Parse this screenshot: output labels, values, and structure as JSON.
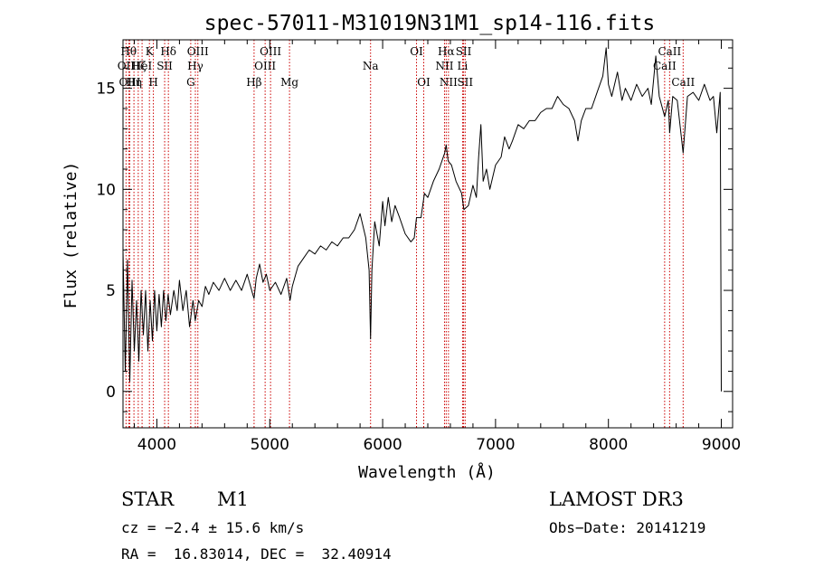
{
  "chart_data": {
    "type": "line",
    "title": "spec-57011-M31019N31M1_sp14-116.fits",
    "xlabel": "Wavelength (Å)",
    "ylabel": "Flux (relative)",
    "xlim": [
      3700,
      9100
    ],
    "ylim": [
      -1.8,
      17.4
    ],
    "xticks": [
      4000,
      5000,
      6000,
      7000,
      8000,
      9000
    ],
    "yticks": [
      0,
      5,
      10,
      15
    ],
    "grid": false,
    "series": [
      {
        "values": [
          [
            3700,
            7.0
          ],
          [
            3720,
            1.0
          ],
          [
            3740,
            6.5
          ],
          [
            3760,
            0.5
          ],
          [
            3780,
            5.5
          ],
          [
            3800,
            2.0
          ],
          [
            3820,
            4.5
          ],
          [
            3840,
            1.5
          ],
          [
            3860,
            5.0
          ],
          [
            3880,
            2.8
          ],
          [
            3900,
            5.0
          ],
          [
            3920,
            2.0
          ],
          [
            3940,
            4.5
          ],
          [
            3960,
            2.5
          ],
          [
            3980,
            5.0
          ],
          [
            4000,
            3.0
          ],
          [
            4020,
            4.8
          ],
          [
            4040,
            3.2
          ],
          [
            4060,
            5.0
          ],
          [
            4080,
            3.5
          ],
          [
            4100,
            4.8
          ],
          [
            4120,
            3.8
          ],
          [
            4150,
            5.0
          ],
          [
            4180,
            4.0
          ],
          [
            4200,
            5.5
          ],
          [
            4230,
            4.0
          ],
          [
            4260,
            5.0
          ],
          [
            4290,
            3.2
          ],
          [
            4320,
            4.5
          ],
          [
            4340,
            3.5
          ],
          [
            4370,
            4.5
          ],
          [
            4400,
            4.2
          ],
          [
            4430,
            5.2
          ],
          [
            4460,
            4.8
          ],
          [
            4500,
            5.4
          ],
          [
            4550,
            5.0
          ],
          [
            4600,
            5.6
          ],
          [
            4650,
            5.0
          ],
          [
            4700,
            5.5
          ],
          [
            4750,
            5.0
          ],
          [
            4800,
            5.8
          ],
          [
            4850,
            4.8
          ],
          [
            4861,
            4.6
          ],
          [
            4880,
            5.6
          ],
          [
            4910,
            6.3
          ],
          [
            4940,
            5.4
          ],
          [
            4970,
            5.8
          ],
          [
            5000,
            5.0
          ],
          [
            5050,
            5.4
          ],
          [
            5100,
            4.8
          ],
          [
            5150,
            5.6
          ],
          [
            5180,
            4.5
          ],
          [
            5200,
            5.2
          ],
          [
            5250,
            6.2
          ],
          [
            5300,
            6.6
          ],
          [
            5350,
            7.0
          ],
          [
            5400,
            6.8
          ],
          [
            5450,
            7.2
          ],
          [
            5500,
            7.0
          ],
          [
            5550,
            7.4
          ],
          [
            5600,
            7.2
          ],
          [
            5650,
            7.6
          ],
          [
            5700,
            7.6
          ],
          [
            5750,
            8.0
          ],
          [
            5800,
            8.8
          ],
          [
            5850,
            7.6
          ],
          [
            5880,
            6.0
          ],
          [
            5893,
            2.6
          ],
          [
            5905,
            6.0
          ],
          [
            5930,
            8.4
          ],
          [
            5970,
            7.2
          ],
          [
            6000,
            9.4
          ],
          [
            6020,
            8.2
          ],
          [
            6050,
            9.6
          ],
          [
            6080,
            8.4
          ],
          [
            6110,
            9.2
          ],
          [
            6150,
            8.6
          ],
          [
            6200,
            7.8
          ],
          [
            6250,
            7.4
          ],
          [
            6280,
            7.6
          ],
          [
            6300,
            8.6
          ],
          [
            6340,
            8.6
          ],
          [
            6370,
            9.8
          ],
          [
            6400,
            9.6
          ],
          [
            6450,
            10.4
          ],
          [
            6500,
            11.0
          ],
          [
            6550,
            11.8
          ],
          [
            6563,
            12.2
          ],
          [
            6580,
            11.4
          ],
          [
            6610,
            11.2
          ],
          [
            6650,
            10.4
          ],
          [
            6700,
            9.8
          ],
          [
            6720,
            9.0
          ],
          [
            6760,
            9.2
          ],
          [
            6800,
            10.2
          ],
          [
            6830,
            9.6
          ],
          [
            6850,
            11.6
          ],
          [
            6870,
            13.2
          ],
          [
            6890,
            10.4
          ],
          [
            6920,
            11.0
          ],
          [
            6950,
            10.0
          ],
          [
            7000,
            11.2
          ],
          [
            7050,
            11.6
          ],
          [
            7080,
            12.6
          ],
          [
            7120,
            12.0
          ],
          [
            7150,
            12.4
          ],
          [
            7200,
            13.2
          ],
          [
            7250,
            13.0
          ],
          [
            7300,
            13.4
          ],
          [
            7350,
            13.4
          ],
          [
            7400,
            13.8
          ],
          [
            7450,
            14.0
          ],
          [
            7500,
            14.0
          ],
          [
            7550,
            14.6
          ],
          [
            7600,
            14.2
          ],
          [
            7650,
            14.0
          ],
          [
            7700,
            13.4
          ],
          [
            7730,
            12.4
          ],
          [
            7760,
            13.4
          ],
          [
            7800,
            14.0
          ],
          [
            7850,
            14.0
          ],
          [
            7900,
            14.8
          ],
          [
            7950,
            15.6
          ],
          [
            7980,
            17.0
          ],
          [
            8000,
            15.2
          ],
          [
            8030,
            14.6
          ],
          [
            8080,
            15.8
          ],
          [
            8120,
            14.4
          ],
          [
            8150,
            15.0
          ],
          [
            8200,
            14.4
          ],
          [
            8250,
            15.2
          ],
          [
            8300,
            14.6
          ],
          [
            8350,
            15.0
          ],
          [
            8380,
            14.2
          ],
          [
            8420,
            16.6
          ],
          [
            8450,
            14.6
          ],
          [
            8498,
            13.6
          ],
          [
            8530,
            14.4
          ],
          [
            8542,
            12.8
          ],
          [
            8570,
            14.6
          ],
          [
            8610,
            14.4
          ],
          [
            8662,
            11.8
          ],
          [
            8700,
            14.6
          ],
          [
            8750,
            14.8
          ],
          [
            8800,
            14.4
          ],
          [
            8850,
            15.2
          ],
          [
            8900,
            14.4
          ],
          [
            8930,
            14.6
          ],
          [
            8960,
            12.8
          ],
          [
            8990,
            14.8
          ],
          [
            9000,
            0.0
          ]
        ]
      }
    ],
    "lines": [
      {
        "wl": 3727,
        "label": "OII",
        "row": 2
      },
      {
        "wl": 3750,
        "label": "Hθ",
        "row": 1
      },
      {
        "wl": 3760,
        "label": "OIII",
        "row": 3
      },
      {
        "wl": 3797,
        "label": "Hη",
        "row": 3
      },
      {
        "wl": 3835,
        "label": "Hζ",
        "row": 2
      },
      {
        "wl": 3869,
        "label": "HeI",
        "row": 2
      },
      {
        "wl": 3934,
        "label": "K",
        "row": 1
      },
      {
        "wl": 3969,
        "label": "H",
        "row": 3
      },
      {
        "wl": 4069,
        "label": "SII",
        "row": 2
      },
      {
        "wl": 4102,
        "label": "Hδ",
        "row": 1
      },
      {
        "wl": 4300,
        "label": "G",
        "row": 3
      },
      {
        "wl": 4341,
        "label": "Hγ",
        "row": 2
      },
      {
        "wl": 4363,
        "label": "OIII",
        "row": 1
      },
      {
        "wl": 4861,
        "label": "Hβ",
        "row": 3
      },
      {
        "wl": 4959,
        "label": "OIII",
        "row": 2
      },
      {
        "wl": 5007,
        "label": "OIII",
        "row": 1
      },
      {
        "wl": 5175,
        "label": "Mg",
        "row": 3
      },
      {
        "wl": 5893,
        "label": "Na",
        "row": 2
      },
      {
        "wl": 6300,
        "label": "OI",
        "row": 1
      },
      {
        "wl": 6364,
        "label": "OI",
        "row": 3
      },
      {
        "wl": 6548,
        "label": "NII",
        "row": 2
      },
      {
        "wl": 6563,
        "label": "Hα",
        "row": 1
      },
      {
        "wl": 6583,
        "label": "NII",
        "row": 3
      },
      {
        "wl": 6708,
        "label": "Li",
        "row": 2
      },
      {
        "wl": 6717,
        "label": "SII",
        "row": 1
      },
      {
        "wl": 6731,
        "label": "SII",
        "row": 3
      },
      {
        "wl": 8498,
        "label": "CaII",
        "row": 2
      },
      {
        "wl": 8542,
        "label": "CaII",
        "row": 1
      },
      {
        "wl": 8662,
        "label": "CaII",
        "row": 3
      }
    ]
  },
  "info": {
    "class_label": "STAR",
    "subclass": "M1",
    "survey": "LAMOST DR3",
    "cz": "cz = −2.4 ± 15.6 km/s",
    "obs_date": "Obs−Date: 20141219",
    "coords": "RA =  16.83014, DEC =  32.40914"
  },
  "colors": {
    "spectrum": "#000000",
    "line_markers": "#cc0000"
  }
}
